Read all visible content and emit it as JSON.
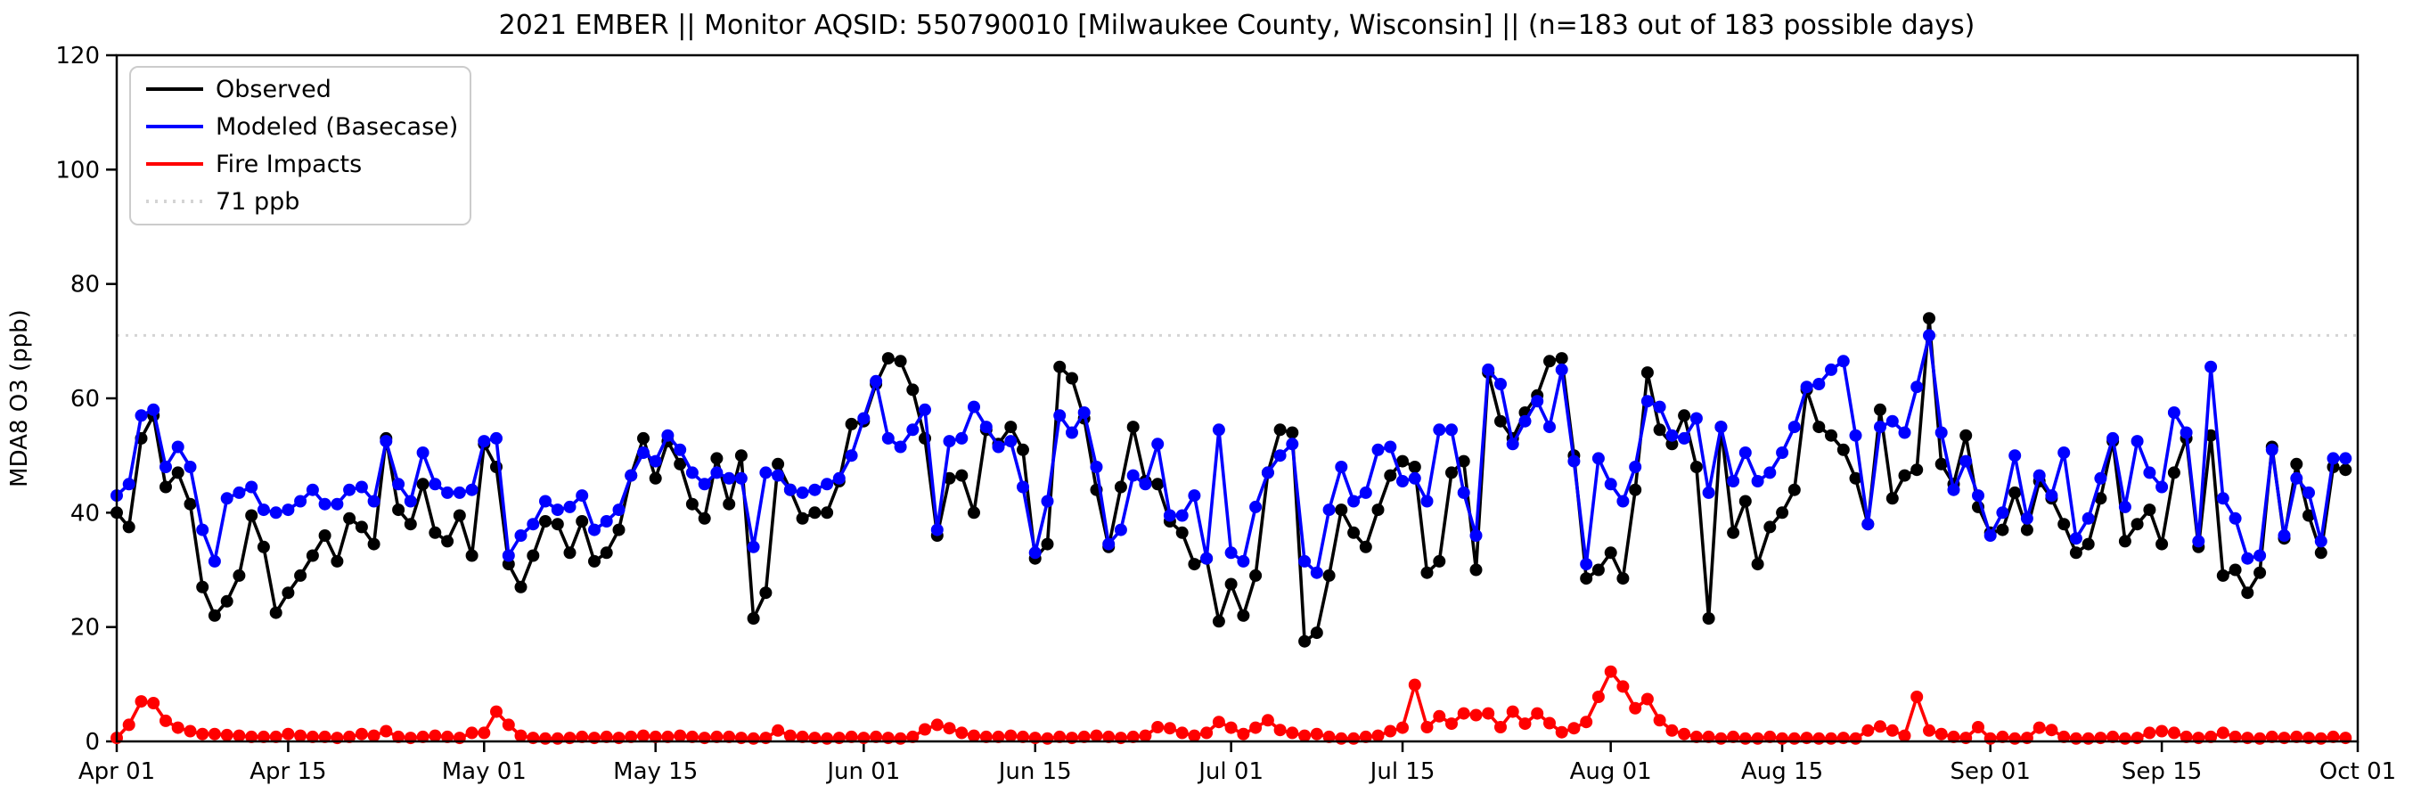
{
  "title": "2021 EMBER || Monitor AQSID: 550790010 [Milwaukee County, Wisconsin] || (n=183 out of 183 possible days)",
  "legend": {
    "items": [
      {
        "label": "Observed",
        "color": "#000000",
        "dash": ""
      },
      {
        "label": "Modeled (Basecase)",
        "color": "#0000ff",
        "dash": ""
      },
      {
        "label": "Fire Impacts",
        "color": "#ff0000",
        "dash": ""
      },
      {
        "label": "71 ppb",
        "color": "#d4d4d4",
        "dash": "3 7"
      }
    ]
  },
  "chart_data": {
    "type": "line",
    "title": "2021 EMBER || Monitor AQSID: 550790010 [Milwaukee County, Wisconsin] || (n=183 out of 183 possible days)",
    "ylabel": "MDA8 O3 (ppb)",
    "xlabel": "",
    "grid": false,
    "legend_position": "upper-left",
    "y_axis": {
      "lim": [
        0,
        120
      ],
      "ticks": [
        0,
        20,
        40,
        60,
        80,
        100,
        120
      ]
    },
    "x_axis": {
      "total_days": 183,
      "start": "Apr 01",
      "end": "Oct 01",
      "tick_labels": [
        "Apr 01",
        "Apr 15",
        "May 01",
        "May 15",
        "Jun 01",
        "Jun 15",
        "Jul 01",
        "Jul 15",
        "Aug 01",
        "Aug 15",
        "Sep 01",
        "Sep 15",
        "Oct 01"
      ],
      "tick_days": [
        0,
        14,
        30,
        44,
        61,
        75,
        91,
        105,
        122,
        136,
        153,
        167,
        183
      ]
    },
    "threshold": {
      "value": 71,
      "label": "71 ppb",
      "color": "#d4d4d4"
    },
    "series": [
      {
        "name": "Observed",
        "color": "#000000",
        "values": [
          40,
          37.5,
          53,
          57,
          44.5,
          47,
          41.5,
          27,
          22,
          24.5,
          29,
          39.5,
          34,
          22.5,
          26,
          29,
          32.5,
          36,
          31.5,
          39,
          37.5,
          34.5,
          53,
          40.5,
          38,
          45,
          36.5,
          35,
          39.5,
          32.5,
          52,
          48,
          31,
          27,
          32.5,
          38.5,
          38,
          33,
          38.5,
          31.5,
          33,
          37,
          46.5,
          53,
          46,
          52.5,
          48.5,
          41.5,
          39,
          49.5,
          41.5,
          50,
          21.5,
          26,
          48.5,
          44,
          39,
          40,
          40,
          45.5,
          55.5,
          56,
          62.5,
          67,
          66.5,
          61.5,
          53,
          36,
          46,
          46.5,
          40,
          54.5,
          52,
          55,
          51,
          32,
          34.5,
          65.5,
          63.5,
          56.5,
          44,
          34,
          44.5,
          55,
          45.5,
          45,
          38.5,
          36.5,
          31,
          32,
          21,
          27.5,
          22,
          29,
          47,
          54.5,
          54,
          17.5,
          19,
          29,
          40.5,
          36.5,
          34,
          40.5,
          46.5,
          49,
          48,
          29.5,
          31.5,
          47,
          49,
          30,
          64.5,
          56,
          53,
          57.5,
          60.5,
          66.5,
          67,
          50,
          28.5,
          30,
          33,
          28.5,
          44,
          64.5,
          54.5,
          52,
          57,
          48,
          21.5,
          55,
          36.5,
          42,
          31,
          37.5,
          40,
          44,
          61.5,
          55,
          53.5,
          51,
          46,
          38,
          58,
          42.5,
          46.5,
          47.5,
          74,
          48.5,
          45,
          53.5,
          41,
          36.5,
          37,
          43.5,
          37,
          45.5,
          42.5,
          38,
          33,
          34.5,
          42.5,
          52.5,
          35,
          38,
          40.5,
          34.5,
          47,
          53,
          34,
          53.5,
          29,
          30,
          26,
          29.5,
          51.5,
          35.5,
          48.5,
          39.5,
          33,
          48,
          47.5
        ]
      },
      {
        "name": "Modeled (Basecase)",
        "color": "#0000ff",
        "values": [
          43,
          45,
          57,
          58,
          48,
          51.5,
          48,
          37,
          31.5,
          42.5,
          43.5,
          44.5,
          40.5,
          40,
          40.5,
          42,
          44,
          41.5,
          41.5,
          44,
          44.5,
          42,
          52.5,
          45,
          42,
          50.5,
          45,
          43.5,
          43.5,
          44,
          52.5,
          53,
          32.5,
          36,
          38,
          42,
          40.5,
          41,
          43,
          37,
          38.5,
          40.5,
          46.5,
          50.5,
          49,
          53.5,
          51,
          47,
          45,
          47,
          46,
          46,
          34,
          47,
          46.5,
          44,
          43.5,
          44,
          45,
          46,
          50,
          56.5,
          63,
          53,
          51.5,
          54.5,
          58,
          37,
          52.5,
          53,
          58.5,
          55,
          51.5,
          52.5,
          44.5,
          33,
          42,
          57,
          54,
          57.5,
          48,
          34.5,
          37,
          46.5,
          45,
          52,
          39.5,
          39.5,
          43,
          32,
          54.5,
          33,
          31.5,
          41,
          47,
          50,
          52,
          31.5,
          29.5,
          40.5,
          48,
          42,
          43.5,
          51,
          51.5,
          45.5,
          46,
          42,
          54.5,
          54.5,
          43.5,
          36,
          65,
          62.5,
          52,
          56,
          59.5,
          55,
          65,
          49,
          31,
          49.5,
          45,
          42,
          48,
          59.5,
          58.5,
          53.5,
          53,
          56.5,
          43.5,
          55,
          45.5,
          50.5,
          45.5,
          47,
          50.5,
          55,
          62,
          62.5,
          65,
          66.5,
          53.5,
          38,
          55,
          56,
          54,
          62,
          71,
          54,
          44,
          49,
          43,
          36,
          40,
          50,
          39,
          46.5,
          43,
          50.5,
          35.5,
          39,
          46,
          53,
          41,
          52.5,
          47,
          44.5,
          57.5,
          54,
          35,
          65.5,
          42.5,
          39,
          32,
          32.5,
          51,
          36,
          46,
          43.5,
          35,
          49.5,
          49.5
        ]
      },
      {
        "name": "Fire Impacts",
        "color": "#ff0000",
        "values": [
          0.6,
          2.9,
          7,
          6.7,
          3.6,
          2.4,
          1.8,
          1.3,
          1.3,
          1.1,
          1,
          0.8,
          0.8,
          0.8,
          1.3,
          1,
          0.8,
          0.8,
          0.6,
          0.8,
          1.3,
          1,
          1.8,
          0.8,
          0.6,
          0.8,
          1,
          0.8,
          0.6,
          1.5,
          1.5,
          5.2,
          2.9,
          1,
          0.6,
          0.5,
          0.5,
          0.6,
          0.8,
          0.6,
          0.8,
          0.6,
          0.8,
          1,
          0.8,
          0.8,
          1,
          0.8,
          0.6,
          0.8,
          0.8,
          0.6,
          0.5,
          0.6,
          1.9,
          1,
          0.8,
          0.6,
          0.5,
          0.6,
          0.8,
          0.6,
          0.8,
          0.6,
          0.5,
          0.8,
          2.1,
          2.9,
          2.3,
          1.5,
          1,
          0.8,
          0.8,
          1,
          0.8,
          0.6,
          0.5,
          0.8,
          0.6,
          0.8,
          1,
          0.8,
          0.6,
          0.8,
          1,
          2.5,
          2.3,
          1.5,
          1,
          1.5,
          3.4,
          2.4,
          1.3,
          2.4,
          3.7,
          2,
          1.5,
          1,
          1.3,
          0.8,
          0.5,
          0.5,
          0.8,
          1,
          1.8,
          2.4,
          9.9,
          2.5,
          4.4,
          3.1,
          4.9,
          4.6,
          4.9,
          2.5,
          5.2,
          3.1,
          4.9,
          3.2,
          1.6,
          2.3,
          3.4,
          7.8,
          12.2,
          9.6,
          5.8,
          7.4,
          3.7,
          1.9,
          1.3,
          0.8,
          0.8,
          0.5,
          0.8,
          0.5,
          0.5,
          0.8,
          0.5,
          0.5,
          0.6,
          0.5,
          0.5,
          0.6,
          0.5,
          1.9,
          2.6,
          1.9,
          1,
          7.8,
          1.9,
          1.3,
          0.8,
          0.6,
          2.5,
          0.5,
          0.8,
          0.5,
          0.6,
          2.4,
          2,
          0.8,
          0.5,
          0.5,
          0.6,
          0.8,
          0.5,
          0.6,
          1.5,
          1.8,
          1.5,
          0.8,
          0.6,
          0.8,
          1.5,
          0.8,
          0.6,
          0.5,
          0.8,
          0.6,
          0.8,
          0.6,
          0.5,
          0.8,
          0.6
        ]
      }
    ]
  }
}
